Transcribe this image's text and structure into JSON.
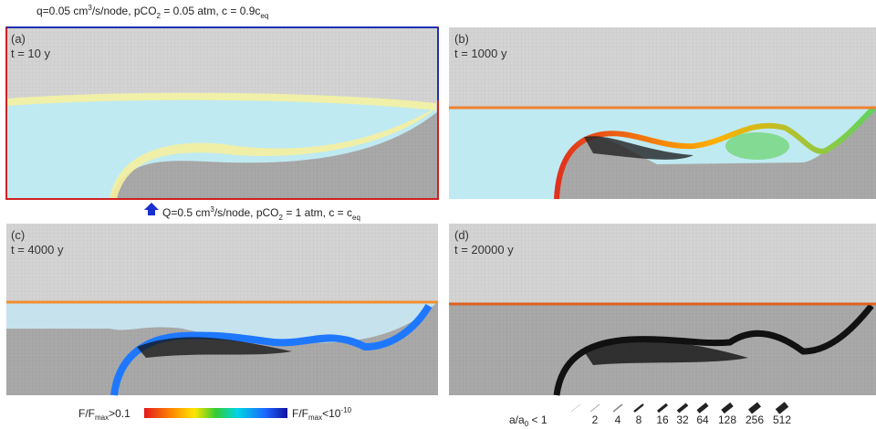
{
  "top_annotation": [
    "q=0.05 cm",
    "3",
    "/s/node, pCO",
    "2",
    " = 0.05 atm, c = 0.9c",
    "eq"
  ],
  "bottom_annotation": [
    "Q=0.5 cm",
    "3",
    "/s/node, pCO",
    "2",
    " = 1 atm, c = c",
    "eq"
  ],
  "panels": [
    {
      "label": "(a)",
      "time": "t = 10 y"
    },
    {
      "label": "(b)",
      "time": "t = 1000 y"
    },
    {
      "label": "(c)",
      "time": "t = 4000 y"
    },
    {
      "label": "(d)",
      "time": "t = 20000 y"
    }
  ],
  "colorbar": {
    "left": [
      "F/F",
      "max",
      ">0.1"
    ],
    "right": [
      "F/F",
      "max",
      "<10",
      "-10"
    ]
  },
  "aperture_legend": {
    "label": [
      "a/a",
      "0",
      " < 1"
    ],
    "values": [
      "2",
      "4",
      "8",
      "16",
      "32",
      "64",
      "128",
      "256",
      "512"
    ]
  }
}
